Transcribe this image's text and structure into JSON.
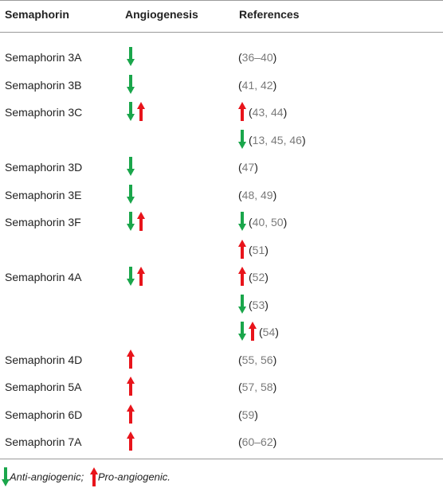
{
  "headers": {
    "semaphorin": "Semaphorin",
    "angiogenesis": "Angiogenesis",
    "references": "References"
  },
  "rows": [
    {
      "name": "Semaphorin 3A",
      "angio": [
        "down"
      ],
      "refs": [
        {
          "arrows": [],
          "text": "36–40"
        }
      ]
    },
    {
      "name": "Semaphorin 3B",
      "angio": [
        "down"
      ],
      "refs": [
        {
          "arrows": [],
          "text": "41, 42"
        }
      ]
    },
    {
      "name": "Semaphorin 3C",
      "angio": [
        "down",
        "up"
      ],
      "refs": [
        {
          "arrows": [
            "up"
          ],
          "text": "43, 44"
        },
        {
          "arrows": [
            "down"
          ],
          "text": "13, 45, 46"
        }
      ]
    },
    {
      "name": "Semaphorin 3D",
      "angio": [
        "down"
      ],
      "refs": [
        {
          "arrows": [],
          "text": "47"
        }
      ]
    },
    {
      "name": "Semaphorin 3E",
      "angio": [
        "down"
      ],
      "refs": [
        {
          "arrows": [],
          "text": "48, 49"
        }
      ]
    },
    {
      "name": "Semaphorin 3F",
      "angio": [
        "down",
        "up"
      ],
      "refs": [
        {
          "arrows": [
            "down"
          ],
          "text": "40, 50"
        },
        {
          "arrows": [
            "up"
          ],
          "text": "51"
        }
      ]
    },
    {
      "name": "Semaphorin 4A",
      "angio": [
        "down",
        "up"
      ],
      "refs": [
        {
          "arrows": [
            "up"
          ],
          "text": "52"
        },
        {
          "arrows": [
            "down"
          ],
          "text": "53"
        },
        {
          "arrows": [
            "down",
            "up"
          ],
          "text": "54"
        }
      ]
    },
    {
      "name": "Semaphorin 4D",
      "angio": [
        "up"
      ],
      "refs": [
        {
          "arrows": [],
          "text": "55, 56"
        }
      ]
    },
    {
      "name": "Semaphorin 5A",
      "angio": [
        "up"
      ],
      "refs": [
        {
          "arrows": [],
          "text": "57, 58"
        }
      ]
    },
    {
      "name": "Semaphorin 6D",
      "angio": [
        "up"
      ],
      "refs": [
        {
          "arrows": [],
          "text": "59"
        }
      ]
    },
    {
      "name": "Semaphorin 7A",
      "angio": [
        "up"
      ],
      "refs": [
        {
          "arrows": [],
          "text": "60–62"
        }
      ]
    }
  ],
  "footnote": {
    "anti": "Anti-angiogenic;",
    "pro": "Pro-angiogenic."
  },
  "colors": {
    "down_arrow": "#1aa64b",
    "up_arrow": "#e8141b",
    "rule": "#9a9a9a"
  }
}
